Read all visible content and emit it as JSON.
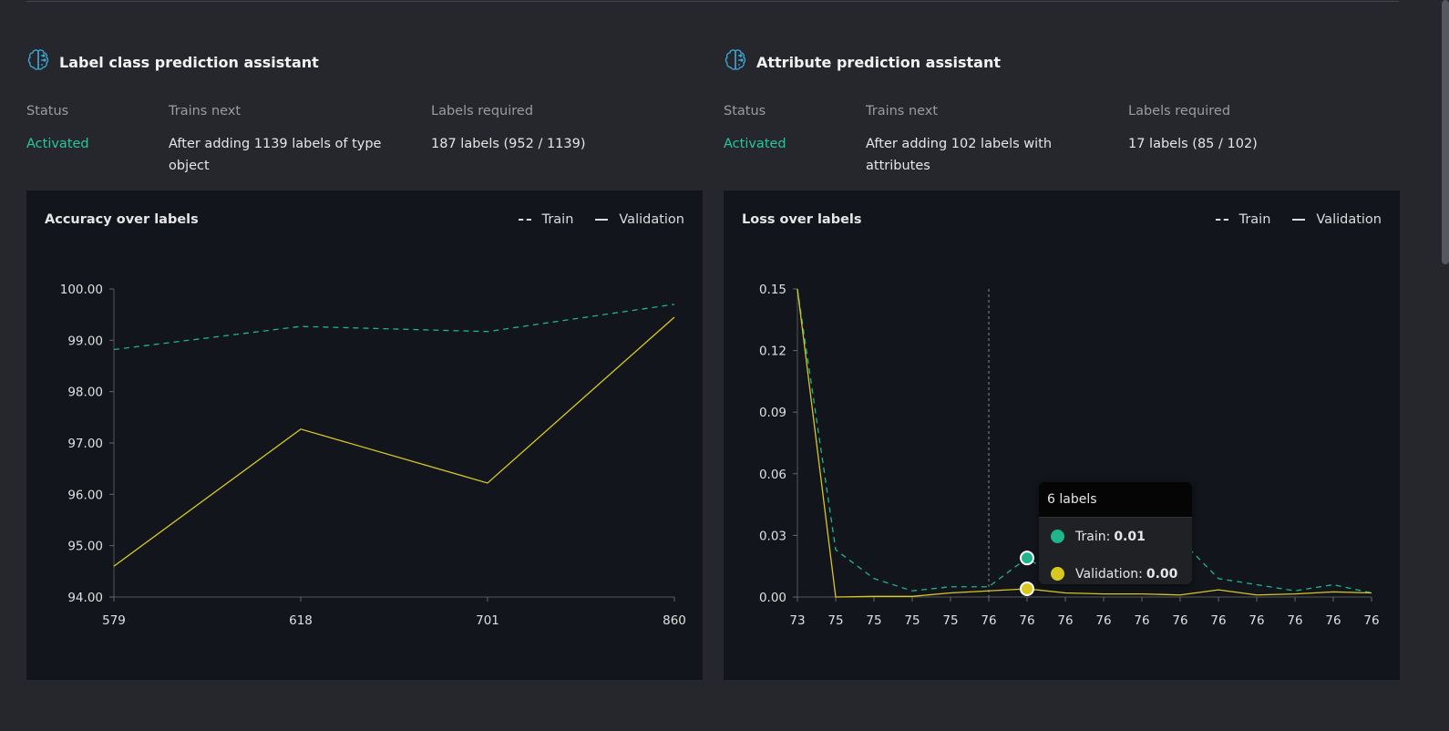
{
  "assistants": [
    {
      "title": "Label class prediction assistant",
      "icon": "brain-icon",
      "status_label": "Status",
      "status": "Activated",
      "trains_next_label": "Trains next",
      "trains_next": "After adding 1139 labels of type object",
      "labels_required_label": "Labels required",
      "labels_required": "187 labels (952 / 1139)"
    },
    {
      "title": "Attribute prediction assistant",
      "icon": "brain-icon",
      "status_label": "Status",
      "status": "Activated",
      "trains_next_label": "Trains next",
      "trains_next": "After adding 102 labels with attributes",
      "labels_required_label": "Labels required",
      "labels_required": "17 labels (85 / 102)"
    }
  ],
  "colors": {
    "train": "#1fb58c",
    "validation": "#d8c820",
    "status": "#26c79a",
    "panel": "#12151b",
    "background": "#25272c"
  },
  "chart_data": [
    {
      "type": "line",
      "title": "Accuracy over labels",
      "legend": "top-right",
      "x": [
        "579",
        "618",
        "701",
        "860"
      ],
      "ylim": [
        94,
        100
      ],
      "yticks": [
        "94.00",
        "95.00",
        "96.00",
        "97.00",
        "98.00",
        "99.00",
        "100.00"
      ],
      "series": [
        {
          "name": "Train",
          "style": "dashed",
          "values": [
            98.82,
            99.27,
            99.17,
            99.7
          ]
        },
        {
          "name": "Validation",
          "style": "solid",
          "values": [
            94.6,
            97.27,
            96.22,
            99.45
          ]
        }
      ]
    },
    {
      "type": "line",
      "title": "Loss over labels",
      "legend": "top-right",
      "x": [
        "73",
        "75",
        "75",
        "75",
        "75",
        "76",
        "76",
        "76",
        "76",
        "76",
        "76",
        "76",
        "76",
        "76",
        "76",
        "76"
      ],
      "ylim": [
        0,
        0.15
      ],
      "yticks": [
        "0.00",
        "0.03",
        "0.06",
        "0.09",
        "0.12",
        "0.15"
      ],
      "series": [
        {
          "name": "Train",
          "style": "dashed",
          "values": [
            0.15,
            0.023,
            0.009,
            0.003,
            0.005,
            0.005,
            0.019,
            0.007,
            0.02,
            0.013,
            0.028,
            0.009,
            0.006,
            0.003,
            0.006,
            0.002
          ]
        },
        {
          "name": "Validation",
          "style": "solid",
          "values": [
            0.15,
            0,
            0.0003,
            0.0003,
            0.002,
            0.003,
            0.004,
            0.002,
            0.0015,
            0.0015,
            0.001,
            0.0035,
            0.001,
            0.0015,
            0.0025,
            0.002
          ]
        }
      ],
      "tooltip": {
        "title": "6 labels",
        "rows": [
          {
            "name": "Train",
            "value": "0.01"
          },
          {
            "name": "Validation",
            "value": "0.00"
          }
        ]
      }
    }
  ]
}
